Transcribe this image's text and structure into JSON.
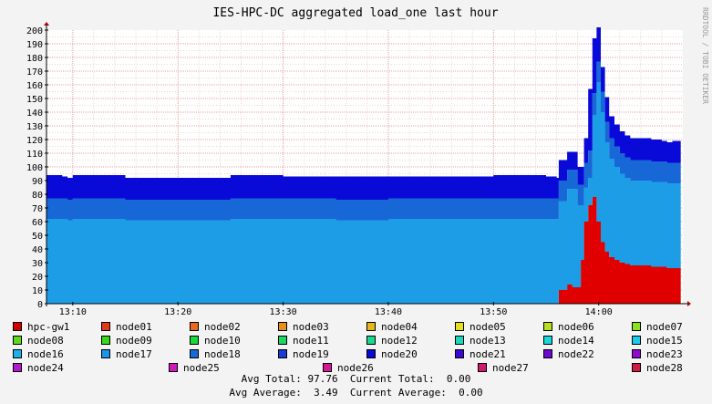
{
  "chart_data": {
    "type": "area",
    "title": "IES-HPC-DC aggregated load_one last hour",
    "side_label": "RRDTOOL / TOBI OETIKER",
    "y_ticks": [
      0,
      10,
      20,
      30,
      40,
      50,
      60,
      70,
      80,
      90,
      100,
      110,
      120,
      130,
      140,
      150,
      160,
      170,
      180,
      190,
      200
    ],
    "ylim": [
      0,
      200
    ],
    "x_ticks": [
      "13:10",
      "13:20",
      "13:30",
      "13:40",
      "13:50",
      "14:00"
    ],
    "x_range_minutes": [
      787.5,
      848.0
    ],
    "x_tick_minutes": [
      790,
      800,
      810,
      820,
      830,
      840
    ],
    "grid": true,
    "stacked": true,
    "series": [
      {
        "name": "hpc-gw1",
        "color": "#e00000",
        "x": [
          787.5,
          836.0,
          836.2,
          837.0,
          837.5,
          838.0,
          838.3,
          838.6,
          839.0,
          839.4,
          839.8,
          840.2,
          840.6,
          841.0,
          841.5,
          842.0,
          842.5,
          843.0,
          843.5,
          844.0,
          844.5,
          845.0,
          845.5,
          846.0,
          846.5,
          847.0,
          847.5,
          847.8
        ],
        "values": [
          0,
          0,
          10,
          14,
          12,
          12,
          32,
          60,
          72,
          78,
          60,
          45,
          38,
          34,
          32,
          30,
          29,
          28,
          28,
          28,
          28,
          27,
          27,
          27,
          26,
          26,
          26,
          26
        ]
      },
      {
        "name": "node17",
        "color": "#1c9de6",
        "x": [
          787.5,
          788.0,
          789.0,
          789.5,
          790.0,
          795.0,
          800.0,
          805.0,
          810.0,
          815.0,
          820.0,
          825.0,
          830.0,
          835.0,
          835.5,
          836.0,
          836.2,
          837.0,
          837.5,
          838.0,
          838.3,
          838.6,
          839.0,
          839.4,
          839.8,
          840.2,
          840.6,
          841.0,
          841.5,
          842.0,
          842.5,
          843.0,
          843.5,
          844.0,
          844.5,
          845.0,
          845.5,
          846.0,
          846.5,
          847.0,
          847.5,
          847.8
        ],
        "values": [
          62,
          62,
          62,
          61,
          62,
          61,
          61,
          62,
          62,
          61,
          62,
          62,
          62,
          62,
          62,
          62,
          65,
          70,
          72,
          60,
          40,
          25,
          20,
          60,
          102,
          95,
          80,
          72,
          68,
          65,
          63,
          62,
          62,
          62,
          62,
          62,
          62,
          62,
          62,
          62,
          62,
          62
        ]
      },
      {
        "name": "node18",
        "color": "#1867d6",
        "x": [
          787.5,
          790.0,
          795.0,
          800.0,
          805.0,
          810.0,
          815.0,
          820.0,
          825.0,
          830.0,
          835.0,
          836.0,
          837.0,
          838.0,
          838.6,
          839.0,
          839.4,
          839.8,
          840.2,
          841.0,
          842.0,
          843.0,
          844.0,
          845.0,
          846.0,
          847.0,
          847.8
        ],
        "values": [
          15,
          15,
          15,
          15,
          15,
          15,
          15,
          15,
          15,
          15,
          15,
          15,
          14,
          15,
          18,
          20,
          16,
          15,
          15,
          15,
          15,
          15,
          15,
          15,
          15,
          15,
          15
        ]
      },
      {
        "name": "node20",
        "color": "#0a0ad8",
        "x": [
          787.5,
          788.5,
          789.0,
          790.0,
          795.0,
          800.0,
          805.0,
          810.0,
          815.0,
          820.0,
          825.0,
          830.0,
          835.0,
          836.0,
          837.0,
          838.0,
          838.6,
          839.0,
          839.4,
          839.8,
          840.2,
          841.0,
          842.0,
          843.0,
          844.0,
          845.0,
          846.0,
          847.0,
          847.8
        ],
        "values": [
          17,
          17,
          16,
          17,
          16,
          16,
          17,
          16,
          17,
          16,
          16,
          17,
          16,
          15,
          13,
          13,
          18,
          45,
          40,
          25,
          18,
          16,
          16,
          16,
          16,
          16,
          15,
          16,
          16
        ]
      }
    ]
  },
  "legend": [
    [
      {
        "name": "hpc-gw1",
        "color": "#d00000"
      },
      {
        "name": "node01",
        "color": "#e03a1a"
      },
      {
        "name": "node02",
        "color": "#e86a1a"
      },
      {
        "name": "node03",
        "color": "#e8901a"
      },
      {
        "name": "node04",
        "color": "#e8b81a"
      },
      {
        "name": "node05",
        "color": "#e6e01a"
      },
      {
        "name": "node06",
        "color": "#b8e01a"
      },
      {
        "name": "node07",
        "color": "#8ee01a"
      }
    ],
    [
      {
        "name": "node08",
        "color": "#60d81a"
      },
      {
        "name": "node09",
        "color": "#3ad81a"
      },
      {
        "name": "node10",
        "color": "#1ad83a"
      },
      {
        "name": "node11",
        "color": "#1ad860"
      },
      {
        "name": "node12",
        "color": "#1ad890"
      },
      {
        "name": "node13",
        "color": "#1ad8b8"
      },
      {
        "name": "node14",
        "color": "#1ad8d8"
      },
      {
        "name": "node15",
        "color": "#1acae6"
      }
    ],
    [
      {
        "name": "node16",
        "color": "#1ab2e6"
      },
      {
        "name": "node17",
        "color": "#1a96e6"
      },
      {
        "name": "node18",
        "color": "#1a6ad6"
      },
      {
        "name": "node19",
        "color": "#1a3ad6"
      },
      {
        "name": "node20",
        "color": "#0a0ad0"
      },
      {
        "name": "node21",
        "color": "#3a0ad0"
      },
      {
        "name": "node22",
        "color": "#6a0ad0"
      },
      {
        "name": "node23",
        "color": "#900ad0"
      }
    ],
    [
      {
        "name": "node24",
        "color": "#b01ad0"
      },
      {
        "name": "node25",
        "color": "#d01ab8"
      },
      {
        "name": "node26",
        "color": "#d01a96"
      },
      {
        "name": "node27",
        "color": "#d01a70"
      },
      {
        "name": "node28",
        "color": "#d01a46"
      }
    ]
  ],
  "summary": {
    "line1": "Avg Total: 97.76  Current Total:  0.00",
    "line2": "Avg Average:  3.49  Current Average:  0.00"
  }
}
